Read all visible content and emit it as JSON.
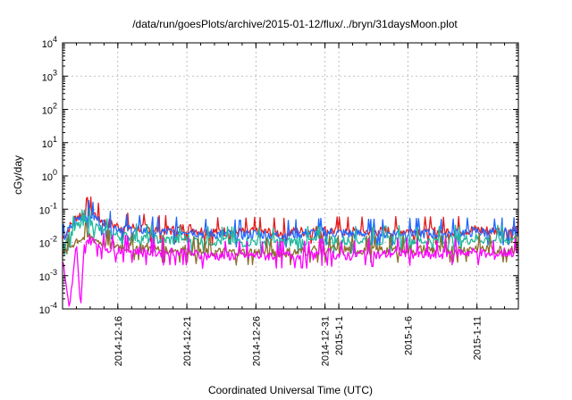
{
  "chart_data": {
    "type": "line",
    "title": "/data/run/goesPlots/archive/2015-01-12/flux/../bryn/31daysMoon.plot",
    "xlabel": "Coordinated Universal Time (UTC)",
    "ylabel": "cGy/day",
    "yscale": "log",
    "ylim": [
      0.0001,
      10000
    ],
    "xlim": [
      "2014-12-12",
      "2015-01-14"
    ],
    "grid": true,
    "y_ticks": [
      {
        "base": "10",
        "exp": "-4",
        "value": 0.0001
      },
      {
        "base": "10",
        "exp": "-3",
        "value": 0.001
      },
      {
        "base": "10",
        "exp": "-2",
        "value": 0.01
      },
      {
        "base": "10",
        "exp": "-1",
        "value": 0.1
      },
      {
        "base": "10",
        "exp": "0",
        "value": 1
      },
      {
        "base": "10",
        "exp": "1",
        "value": 10
      },
      {
        "base": "10",
        "exp": "2",
        "value": 100
      },
      {
        "base": "10",
        "exp": "3",
        "value": 1000
      },
      {
        "base": "10",
        "exp": "4",
        "value": 10000
      }
    ],
    "x_ticks": [
      {
        "label": "2014-12-16",
        "date": "2014-12-16"
      },
      {
        "label": "2014-12-21",
        "date": "2014-12-21"
      },
      {
        "label": "2014-12-26",
        "date": "2014-12-26"
      },
      {
        "label": "2014-12-31",
        "date": "2014-12-31"
      },
      {
        "label": "2015-1-1",
        "date": "2015-01-01"
      },
      {
        "label": "2015-1-6",
        "date": "2015-01-06"
      },
      {
        "label": "2015-1-11",
        "date": "2015-01-11"
      }
    ],
    "series": [
      {
        "color": "#e41a1c",
        "level": 0.022,
        "points": [
          [
            "2014-12-12",
            0.013
          ],
          [
            "2014-12-13",
            0.06
          ],
          [
            "2014-12-14",
            0.09
          ],
          [
            "2014-12-15",
            0.04
          ],
          [
            "2014-12-16",
            0.03
          ],
          [
            "2014-12-17",
            0.028
          ],
          [
            "2014-12-18",
            0.026
          ],
          [
            "2014-12-19",
            0.024
          ],
          [
            "2014-12-20",
            0.023
          ],
          [
            "2014-12-21",
            0.028
          ],
          [
            "2014-12-22",
            0.022
          ],
          [
            "2014-12-23",
            0.021
          ],
          [
            "2014-12-24",
            0.021
          ],
          [
            "2014-12-25",
            0.02
          ],
          [
            "2014-12-26",
            0.021
          ],
          [
            "2014-12-27",
            0.02
          ],
          [
            "2014-12-28",
            0.02
          ],
          [
            "2014-12-29",
            0.021
          ],
          [
            "2014-12-30",
            0.022
          ],
          [
            "2014-12-31",
            0.023
          ],
          [
            "2015-01-01",
            0.022
          ],
          [
            "2015-01-02",
            0.021
          ],
          [
            "2015-01-03",
            0.022
          ],
          [
            "2015-01-04",
            0.021
          ],
          [
            "2015-01-05",
            0.022
          ],
          [
            "2015-01-06",
            0.023
          ],
          [
            "2015-01-07",
            0.022
          ],
          [
            "2015-01-08",
            0.021
          ],
          [
            "2015-01-09",
            0.022
          ],
          [
            "2015-01-10",
            0.023
          ],
          [
            "2015-01-11",
            0.024
          ],
          [
            "2015-01-12",
            0.022
          ],
          [
            "2015-01-13",
            0.023
          ],
          [
            "2015-01-14",
            0.024
          ]
        ]
      },
      {
        "color": "#2166ff",
        "level": 0.019,
        "points": [
          [
            "2014-12-12",
            0.012
          ],
          [
            "2014-12-13",
            0.05
          ],
          [
            "2014-12-14",
            0.07
          ],
          [
            "2014-12-15",
            0.035
          ],
          [
            "2014-12-16",
            0.027
          ],
          [
            "2014-12-17",
            0.025
          ],
          [
            "2014-12-18",
            0.023
          ],
          [
            "2014-12-19",
            0.021
          ],
          [
            "2014-12-20",
            0.02
          ],
          [
            "2014-12-21",
            0.024
          ],
          [
            "2014-12-22",
            0.019
          ],
          [
            "2014-12-23",
            0.018
          ],
          [
            "2014-12-24",
            0.018
          ],
          [
            "2014-12-25",
            0.017
          ],
          [
            "2014-12-26",
            0.018
          ],
          [
            "2014-12-27",
            0.017
          ],
          [
            "2014-12-28",
            0.017
          ],
          [
            "2014-12-29",
            0.018
          ],
          [
            "2014-12-30",
            0.019
          ],
          [
            "2014-12-31",
            0.02
          ],
          [
            "2015-01-01",
            0.019
          ],
          [
            "2015-01-02",
            0.018
          ],
          [
            "2015-01-03",
            0.019
          ],
          [
            "2015-01-04",
            0.018
          ],
          [
            "2015-01-05",
            0.019
          ],
          [
            "2015-01-06",
            0.02
          ],
          [
            "2015-01-07",
            0.019
          ],
          [
            "2015-01-08",
            0.018
          ],
          [
            "2015-01-09",
            0.019
          ],
          [
            "2015-01-10",
            0.02
          ],
          [
            "2015-01-11",
            0.021
          ],
          [
            "2015-01-12",
            0.019
          ],
          [
            "2015-01-13",
            0.02
          ],
          [
            "2015-01-14",
            0.021
          ]
        ]
      },
      {
        "color": "#1fb89c",
        "level": 0.012,
        "points": [
          [
            "2014-12-12",
            0.008
          ],
          [
            "2014-12-13",
            0.03
          ],
          [
            "2014-12-14",
            0.04
          ],
          [
            "2014-12-15",
            0.02
          ],
          [
            "2014-12-16",
            0.016
          ],
          [
            "2014-12-17",
            0.014
          ],
          [
            "2014-12-18",
            0.013
          ],
          [
            "2014-12-19",
            0.012
          ],
          [
            "2014-12-20",
            0.012
          ],
          [
            "2014-12-21",
            0.013
          ],
          [
            "2014-12-22",
            0.011
          ],
          [
            "2014-12-23",
            0.011
          ],
          [
            "2014-12-24",
            0.011
          ],
          [
            "2014-12-25",
            0.01
          ],
          [
            "2014-12-26",
            0.011
          ],
          [
            "2014-12-27",
            0.01
          ],
          [
            "2014-12-28",
            0.01
          ],
          [
            "2014-12-29",
            0.011
          ],
          [
            "2014-12-30",
            0.011
          ],
          [
            "2014-12-31",
            0.012
          ],
          [
            "2015-01-01",
            0.011
          ],
          [
            "2015-01-02",
            0.011
          ],
          [
            "2015-01-03",
            0.012
          ],
          [
            "2015-01-04",
            0.011
          ],
          [
            "2015-01-05",
            0.012
          ],
          [
            "2015-01-06",
            0.012
          ],
          [
            "2015-01-07",
            0.011
          ],
          [
            "2015-01-08",
            0.011
          ],
          [
            "2015-01-09",
            0.012
          ],
          [
            "2015-01-10",
            0.012
          ],
          [
            "2015-01-11",
            0.013
          ],
          [
            "2015-01-12",
            0.012
          ],
          [
            "2015-01-13",
            0.012
          ],
          [
            "2015-01-14",
            0.013
          ]
        ]
      },
      {
        "color": "#8b6d2e",
        "level": 0.006,
        "points": [
          [
            "2014-12-12",
            0.004
          ],
          [
            "2014-12-13",
            0.012
          ],
          [
            "2014-12-14",
            0.015
          ],
          [
            "2014-12-15",
            0.009
          ],
          [
            "2014-12-16",
            0.008
          ],
          [
            "2014-12-17",
            0.007
          ],
          [
            "2014-12-18",
            0.007
          ],
          [
            "2014-12-19",
            0.006
          ],
          [
            "2014-12-20",
            0.006
          ],
          [
            "2014-12-21",
            0.006
          ],
          [
            "2014-12-22",
            0.005
          ],
          [
            "2014-12-23",
            0.005
          ],
          [
            "2014-12-24",
            0.005
          ],
          [
            "2014-12-25",
            0.005
          ],
          [
            "2014-12-26",
            0.005
          ],
          [
            "2014-12-27",
            0.005
          ],
          [
            "2014-12-28",
            0.005
          ],
          [
            "2014-12-29",
            0.005
          ],
          [
            "2014-12-30",
            0.006
          ],
          [
            "2014-12-31",
            0.006
          ],
          [
            "2015-01-01",
            0.006
          ],
          [
            "2015-01-02",
            0.006
          ],
          [
            "2015-01-03",
            0.006
          ],
          [
            "2015-01-04",
            0.006
          ],
          [
            "2015-01-05",
            0.006
          ],
          [
            "2015-01-06",
            0.006
          ],
          [
            "2015-01-07",
            0.006
          ],
          [
            "2015-01-08",
            0.006
          ],
          [
            "2015-01-09",
            0.006
          ],
          [
            "2015-01-10",
            0.006
          ],
          [
            "2015-01-11",
            0.007
          ],
          [
            "2015-01-12",
            0.006
          ],
          [
            "2015-01-13",
            0.006
          ],
          [
            "2015-01-14",
            0.007
          ]
        ]
      },
      {
        "color": "#ff00ff",
        "level": 0.005,
        "points": [
          [
            "2014-12-12",
            0.003
          ],
          [
            "2014-12-12.5",
            0.0001
          ],
          [
            "2014-12-13",
            0.008
          ],
          [
            "2014-12-13.3",
            0.0001
          ],
          [
            "2014-12-13.6",
            0.011
          ],
          [
            "2014-12-14",
            0.012
          ],
          [
            "2014-12-15",
            0.007
          ],
          [
            "2014-12-16",
            0.006
          ],
          [
            "2014-12-17",
            0.006
          ],
          [
            "2014-12-18",
            0.005
          ],
          [
            "2014-12-19",
            0.005
          ],
          [
            "2014-12-20",
            0.005
          ],
          [
            "2014-12-21",
            0.005
          ],
          [
            "2014-12-22",
            0.004
          ],
          [
            "2014-12-23",
            0.004
          ],
          [
            "2014-12-24",
            0.004
          ],
          [
            "2014-12-25",
            0.004
          ],
          [
            "2014-12-26",
            0.004
          ],
          [
            "2014-12-27",
            0.004
          ],
          [
            "2014-12-28",
            0.004
          ],
          [
            "2014-12-29",
            0.004
          ],
          [
            "2014-12-30",
            0.004
          ],
          [
            "2014-12-31",
            0.005
          ],
          [
            "2015-01-01",
            0.004
          ],
          [
            "2015-01-02",
            0.004
          ],
          [
            "2015-01-03",
            0.005
          ],
          [
            "2015-01-04",
            0.004
          ],
          [
            "2015-01-05",
            0.005
          ],
          [
            "2015-01-06",
            0.005
          ],
          [
            "2015-01-07",
            0.004
          ],
          [
            "2015-01-08",
            0.004
          ],
          [
            "2015-01-09",
            0.005
          ],
          [
            "2015-01-10",
            0.005
          ],
          [
            "2015-01-11",
            0.005
          ],
          [
            "2015-01-12",
            0.004
          ],
          [
            "2015-01-13",
            0.005
          ],
          [
            "2015-01-14",
            0.005
          ]
        ]
      }
    ]
  }
}
